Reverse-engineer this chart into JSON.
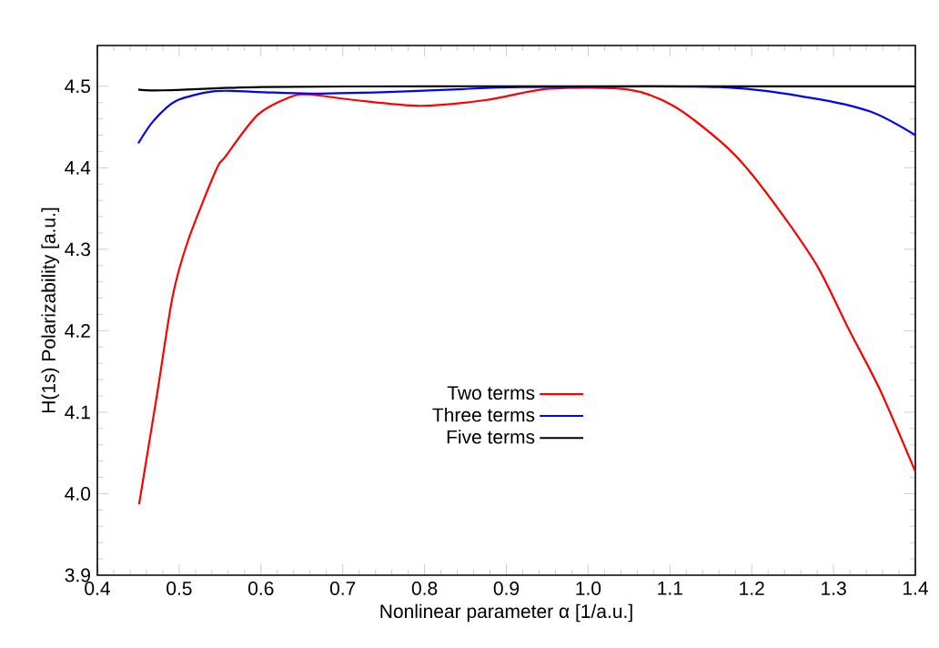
{
  "chart_data": {
    "type": "line",
    "xlabel": "Nonlinear parameter α [1/a.u.]",
    "ylabel": "H(1s) Polarizability [a.u.]",
    "xlim": [
      0.4,
      1.4
    ],
    "ylim": [
      3.9,
      4.55
    ],
    "xticks": [
      0.4,
      0.5,
      0.6,
      0.7,
      0.8,
      0.9,
      {
        "value": 1.0,
        "label": "1.0"
      },
      1.1,
      1.2,
      1.3,
      1.4
    ],
    "yticks": [
      3.9,
      {
        "value": 4.0,
        "label": "4.0"
      },
      4.1,
      4.2,
      4.3,
      4.4,
      4.5
    ],
    "legend": "bottom",
    "series": [
      {
        "name": "Two terms",
        "color": "#ff0000",
        "x": [
          0.451,
          0.473,
          0.492,
          0.511,
          0.545,
          0.556,
          0.596,
          0.636,
          0.659,
          0.715,
          0.794,
          0.874,
          0.953,
          1.049,
          1.104,
          1.162,
          1.196,
          1.245,
          1.282,
          1.319,
          1.357,
          1.4
        ],
        "values": [
          3.987,
          4.122,
          4.242,
          4.311,
          4.397,
          4.413,
          4.465,
          4.487,
          4.49,
          4.483,
          4.476,
          4.483,
          4.497,
          4.496,
          4.476,
          4.432,
          4.397,
          4.332,
          4.276,
          4.201,
          4.127,
          4.027
        ]
      },
      {
        "name": "Three terms",
        "color": "#0000ff",
        "x": [
          0.45,
          0.469,
          0.496,
          0.544,
          0.596,
          0.659,
          0.755,
          0.834,
          0.92,
          1.16,
          1.271,
          1.345,
          1.4
        ],
        "values": [
          4.43,
          4.458,
          4.482,
          4.494,
          4.493,
          4.491,
          4.493,
          4.496,
          4.499,
          4.499,
          4.486,
          4.469,
          4.44
        ]
      },
      {
        "name": "Five terms",
        "color": "#000000",
        "x": [
          0.45,
          0.48,
          0.6,
          0.8,
          1.0,
          1.2,
          1.4
        ],
        "values": [
          4.496,
          4.495,
          4.499,
          4.5,
          4.5,
          4.5,
          4.5
        ]
      }
    ]
  }
}
